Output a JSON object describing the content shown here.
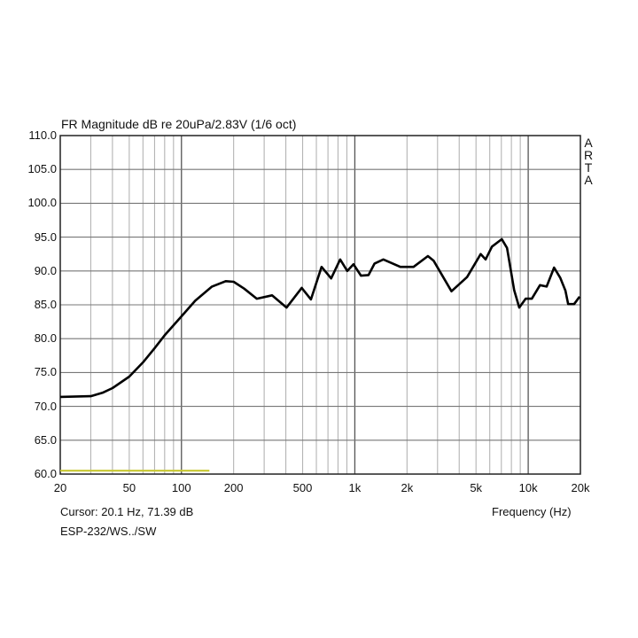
{
  "chart_data": {
    "type": "line",
    "title": "FR Magnitude dB re 20uPa/2.83V (1/6 oct)",
    "xlabel": "Frequency (Hz)",
    "ylabel": "",
    "xscale": "log",
    "xlim": [
      20,
      20000
    ],
    "ylim": [
      60,
      110
    ],
    "grid": true,
    "x_ticks": [
      20,
      50,
      100,
      200,
      500,
      1000,
      2000,
      5000,
      10000,
      20000
    ],
    "x_tick_labels": [
      "20",
      "50",
      "100",
      "200",
      "500",
      "1k",
      "2k",
      "5k",
      "10k",
      "20k"
    ],
    "y_ticks": [
      60,
      65,
      70,
      75,
      80,
      85,
      90,
      95,
      100,
      105,
      110
    ],
    "y_tick_labels": [
      "60.0",
      "65.0",
      "70.0",
      "75.0",
      "80.0",
      "85.0",
      "90.0",
      "95.0",
      "100.0",
      "105.0",
      "110.0"
    ],
    "watermark": "ARTA",
    "series": [
      {
        "color": "#000000",
        "x": [
          20,
          30,
          35,
          40,
          50,
          60,
          70,
          80,
          100,
          120,
          150,
          180,
          200,
          230,
          272,
          333,
          404,
          494,
          558,
          643,
          730,
          823,
          905,
          982,
          1085,
          1200,
          1300,
          1460,
          1830,
          2180,
          2640,
          2850,
          3610,
          4440,
          5320,
          5680,
          6180,
          7040,
          7550,
          8290,
          8880,
          9660,
          10500,
          11700,
          12770,
          14100,
          15300,
          16400,
          17000,
          18400,
          19800
        ],
        "y": [
          71.4,
          71.5,
          72.0,
          72.7,
          74.4,
          76.5,
          78.6,
          80.5,
          83.3,
          85.6,
          87.7,
          88.5,
          88.4,
          87.4,
          85.9,
          86.4,
          84.6,
          87.5,
          85.8,
          90.6,
          88.9,
          91.7,
          90.0,
          91.0,
          89.3,
          89.4,
          91.1,
          91.7,
          90.6,
          90.6,
          92.2,
          91.5,
          87.0,
          89.1,
          92.5,
          91.7,
          93.6,
          94.7,
          93.4,
          87.2,
          84.6,
          85.9,
          85.9,
          87.9,
          87.7,
          90.5,
          89.0,
          87.1,
          85.1,
          85.1,
          86.2
        ]
      },
      {
        "color": "#c8c832",
        "x": [
          20,
          145
        ],
        "y": [
          60.5,
          60.5
        ]
      }
    ]
  },
  "footer": {
    "cursor": "Cursor: 20.1 Hz, 71.39 dB",
    "file": "ESP-232/WS../SW"
  }
}
